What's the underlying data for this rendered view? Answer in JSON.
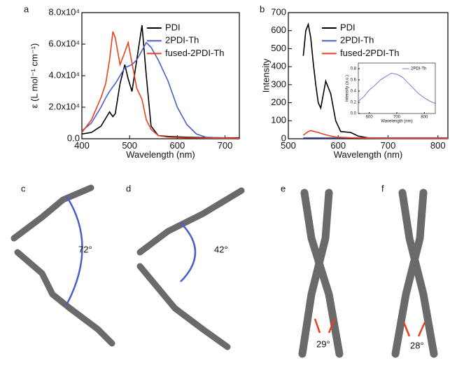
{
  "chart_data": [
    {
      "type": "line",
      "panel_label": "a",
      "xlabel": "Wavelength (nm)",
      "ylabel": "ε (L mol⁻¹ cm⁻¹)",
      "xlim": [
        400,
        730
      ],
      "ylim": [
        0,
        80000
      ],
      "xticks": [
        400,
        500,
        600,
        700
      ],
      "yticks": [
        {
          "value": 0,
          "label": "0.0"
        },
        {
          "value": 20000,
          "label": "2.0x10⁴"
        },
        {
          "value": 40000,
          "label": "4.0x10⁴"
        },
        {
          "value": 60000,
          "label": "6.0x10⁴"
        },
        {
          "value": 80000,
          "label": "8.0x10⁴"
        }
      ],
      "x": [
        400,
        420,
        440,
        450,
        458,
        465,
        470,
        480,
        490,
        497,
        505,
        515,
        526,
        535,
        545,
        560,
        580,
        600,
        620,
        640,
        660,
        700,
        730
      ],
      "series": [
        {
          "name": "PDI",
          "color": "#000000",
          "values": [
            3000,
            4000,
            8000,
            13000,
            17000,
            14000,
            16000,
            35000,
            47000,
            38000,
            30000,
            50000,
            72000,
            40000,
            8000,
            2000,
            1500,
            1200,
            1000,
            800,
            700,
            600,
            600
          ]
        },
        {
          "name": "2PDI-Th",
          "color": "#4a5fc8",
          "values": [
            5000,
            10000,
            20000,
            26000,
            30000,
            33000,
            35000,
            40000,
            45000,
            46000,
            47000,
            50000,
            56000,
            61000,
            58000,
            50000,
            37000,
            20000,
            9000,
            3000,
            1000,
            500,
            300
          ]
        },
        {
          "name": "fused-2PDI-Th",
          "color": "#e8401c",
          "values": [
            4000,
            12000,
            26000,
            35000,
            50000,
            68000,
            64000,
            47000,
            55000,
            61000,
            48000,
            32000,
            25000,
            12000,
            6000,
            2000,
            1000,
            800,
            600,
            500,
            400,
            300,
            300
          ]
        }
      ]
    },
    {
      "type": "line",
      "panel_label": "b",
      "xlabel": "Wavelength (nm)",
      "ylabel": "Intensity",
      "xlim": [
        500,
        820
      ],
      "ylim": [
        0,
        700
      ],
      "xticks": [
        500,
        600,
        700,
        800
      ],
      "yticks": [
        0,
        100,
        200,
        300,
        400,
        500,
        600,
        700
      ],
      "x": [
        530,
        535,
        540,
        545,
        550,
        555,
        560,
        565,
        575,
        585,
        595,
        605,
        625,
        640,
        660,
        700,
        750,
        800,
        820
      ],
      "series": [
        {
          "name": "PDI",
          "color": "#000000",
          "values": [
            460,
            600,
            635,
            560,
            420,
            300,
            200,
            170,
            320,
            250,
            100,
            40,
            35,
            15,
            5,
            3,
            2,
            2,
            2
          ]
        },
        {
          "name": "2PDI-Th",
          "color": "#4a5fc8",
          "values": [
            5,
            5,
            5,
            5,
            5,
            5,
            5,
            5,
            5,
            5,
            5,
            5,
            5,
            5,
            5,
            5,
            5,
            5,
            5
          ]
        },
        {
          "name": "fused-2PDI-Th",
          "color": "#e8401c",
          "values": [
            20,
            30,
            40,
            45,
            42,
            38,
            35,
            30,
            22,
            15,
            10,
            8,
            5,
            4,
            3,
            2,
            2,
            2,
            2
          ]
        }
      ]
    },
    {
      "type": "line",
      "xlabel": "Wavelength (nm)",
      "ylabel": "Intensity (a.u.)",
      "xlim": [
        560,
        840
      ],
      "ylim": [
        0,
        0.9
      ],
      "xticks": [
        600,
        700,
        800
      ],
      "yticks": [
        {
          "value": 0,
          "label": "0.0"
        },
        {
          "value": 0.2,
          "label": "0.2"
        },
        {
          "value": 0.4,
          "label": "0.4"
        },
        {
          "value": 0.6,
          "label": "0.6"
        },
        {
          "value": 0.8,
          "label": "0.8"
        }
      ],
      "x": [
        560,
        580,
        600,
        620,
        640,
        660,
        680,
        700,
        720,
        740,
        760,
        780,
        800,
        820,
        840
      ],
      "series": [
        {
          "name": "2PDI-Th",
          "color": "#4a5fc8",
          "values": [
            0.22,
            0.3,
            0.42,
            0.5,
            0.6,
            0.66,
            0.72,
            0.7,
            0.65,
            0.55,
            0.45,
            0.35,
            0.28,
            0.22,
            0.18
          ]
        }
      ]
    }
  ],
  "panels": [
    {
      "label": "c",
      "angle": "72°"
    },
    {
      "label": "d",
      "angle": "42°"
    },
    {
      "label": "e",
      "angle": "29°"
    },
    {
      "label": "f",
      "angle": "28°"
    }
  ]
}
